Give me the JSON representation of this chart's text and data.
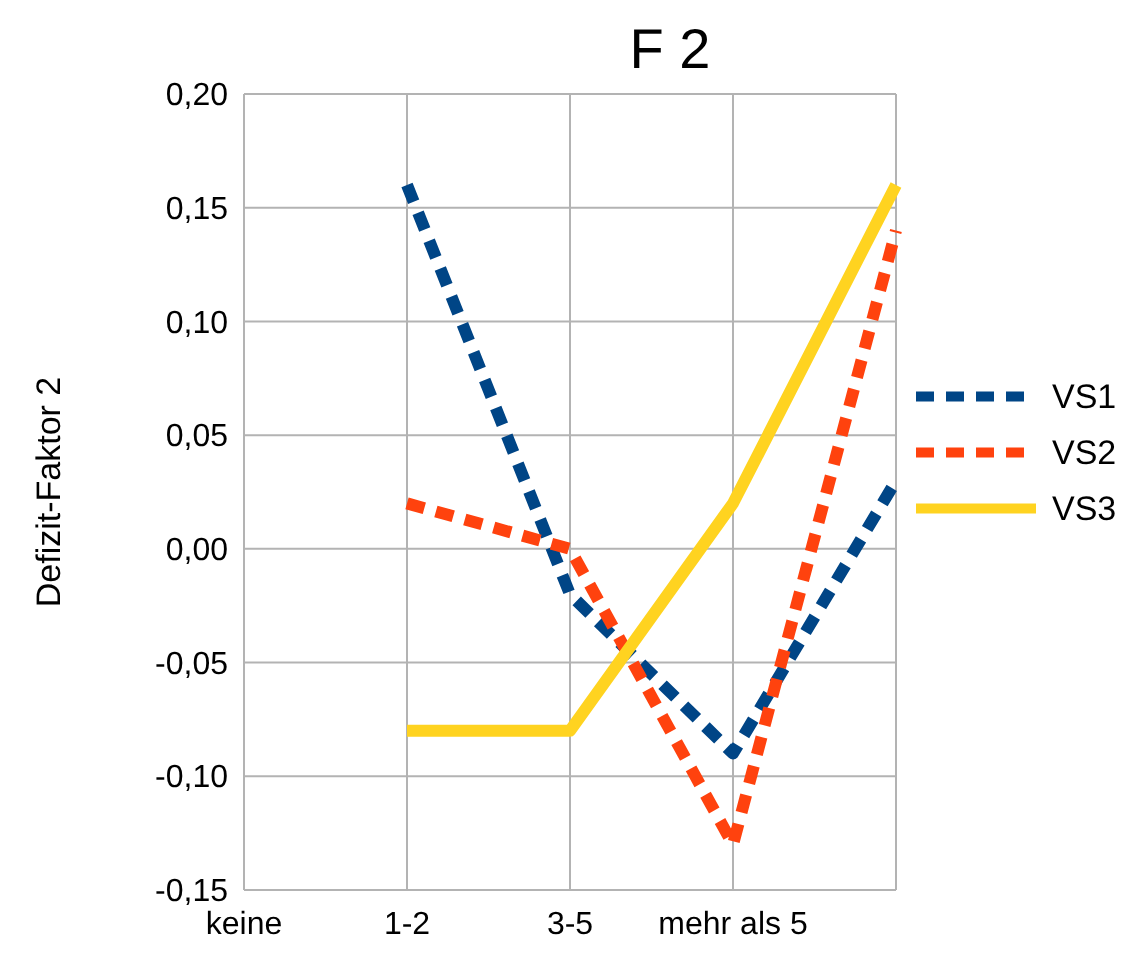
{
  "chart_data": {
    "type": "line",
    "title": "F 2",
    "ylabel": "Defizit-Faktor 2",
    "categories": [
      "keine",
      "1-2",
      "3-5",
      "mehr als 5",
      null
    ],
    "series": [
      {
        "name": "VS1",
        "color": "#004586",
        "line_style": "dashed",
        "values": [
          null,
          0.16,
          -0.02,
          -0.09,
          0.03
        ]
      },
      {
        "name": "VS2",
        "color": "#ff420e",
        "line_style": "dashed",
        "values": [
          null,
          0.02,
          0.0,
          -0.13,
          0.14
        ]
      },
      {
        "name": "VS3",
        "color": "#ffd320",
        "line_style": "solid",
        "values": [
          null,
          -0.08,
          -0.08,
          0.02,
          0.16
        ]
      }
    ],
    "ylim": [
      -0.15,
      0.2
    ],
    "yticks": [
      {
        "value": -0.15,
        "label": "-0,15"
      },
      {
        "value": -0.1,
        "label": "-0,10"
      },
      {
        "value": -0.05,
        "label": "-0,05"
      },
      {
        "value": 0,
        "label": "0,00"
      },
      {
        "value": 0.05,
        "label": "0,05"
      },
      {
        "value": 0.1,
        "label": "0,10"
      },
      {
        "value": 0.15,
        "label": "0,15"
      },
      {
        "value": 0.2,
        "label": "0,20"
      }
    ],
    "grid": true,
    "legend": "right",
    "marker": "none"
  }
}
